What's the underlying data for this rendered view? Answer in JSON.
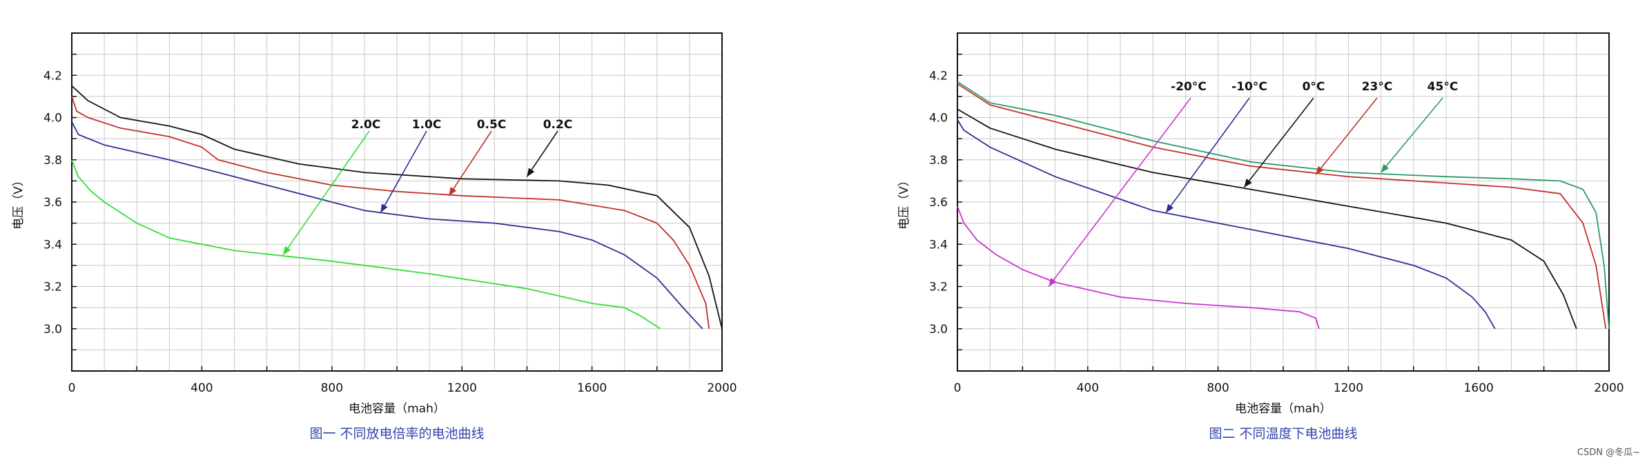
{
  "watermark": "CSDN @冬瓜~",
  "chart_data": [
    {
      "type": "line",
      "caption": "图一  不同放电倍率的电池曲线",
      "xlabel": "电池容量（mah）",
      "ylabel": "电压（V）",
      "xlim": [
        0,
        2000
      ],
      "ylim": [
        2.8,
        4.4
      ],
      "xticks": [
        "0",
        "400",
        "800",
        "1200",
        "1600",
        "2000"
      ],
      "yticks": [
        "3.0",
        "3.2",
        "3.4",
        "3.6",
        "3.8",
        "4.0",
        "4.2"
      ],
      "grid": true,
      "series": [
        {
          "name": "0.2C",
          "color": "#111111",
          "x": [
            0,
            50,
            150,
            300,
            400,
            500,
            700,
            900,
            1200,
            1500,
            1650,
            1800,
            1900,
            1960,
            2000
          ],
          "y": [
            4.15,
            4.08,
            4.0,
            3.96,
            3.92,
            3.85,
            3.78,
            3.74,
            3.71,
            3.7,
            3.68,
            3.63,
            3.48,
            3.25,
            3.0
          ]
        },
        {
          "name": "0.5C",
          "color": "#c0302a",
          "x": [
            0,
            15,
            50,
            150,
            300,
            400,
            450,
            600,
            800,
            1000,
            1200,
            1500,
            1700,
            1800,
            1850,
            1900,
            1950,
            1960
          ],
          "y": [
            4.1,
            4.03,
            4.0,
            3.95,
            3.91,
            3.86,
            3.8,
            3.74,
            3.68,
            3.65,
            3.63,
            3.61,
            3.56,
            3.5,
            3.42,
            3.3,
            3.12,
            3.0
          ]
        },
        {
          "name": "1.0C",
          "color": "#2a2f8f",
          "x": [
            0,
            20,
            100,
            300,
            500,
            700,
            900,
            1100,
            1300,
            1500,
            1600,
            1700,
            1800,
            1880,
            1940
          ],
          "y": [
            3.98,
            3.92,
            3.87,
            3.8,
            3.72,
            3.64,
            3.56,
            3.52,
            3.5,
            3.46,
            3.42,
            3.35,
            3.24,
            3.1,
            3.0
          ]
        },
        {
          "name": "2.0C",
          "color": "#33dd33",
          "x": [
            0,
            20,
            60,
            100,
            200,
            300,
            500,
            800,
            1100,
            1400,
            1600,
            1700,
            1750,
            1810
          ],
          "y": [
            3.8,
            3.72,
            3.65,
            3.6,
            3.5,
            3.43,
            3.37,
            3.32,
            3.26,
            3.19,
            3.12,
            3.1,
            3.06,
            3.0
          ]
        }
      ],
      "annotations": [
        {
          "text": "2.0C",
          "point": [
            650,
            3.35
          ]
        },
        {
          "text": "1.0C",
          "point": [
            950,
            3.55
          ]
        },
        {
          "text": "0.5C",
          "point": [
            1160,
            3.63
          ]
        },
        {
          "text": "0.2C",
          "point": [
            1400,
            3.72
          ]
        }
      ]
    },
    {
      "type": "line",
      "caption": "图二  不同温度下电池曲线",
      "xlabel": "电池容量（mah）",
      "ylabel": "电压（V）",
      "xlim": [
        0,
        2000
      ],
      "ylim": [
        2.8,
        4.4
      ],
      "xticks": [
        "0",
        "400",
        "800",
        "1200",
        "1600",
        "2000"
      ],
      "yticks": [
        "3.0",
        "3.2",
        "3.4",
        "3.6",
        "3.8",
        "4.0",
        "4.2"
      ],
      "grid": true,
      "series": [
        {
          "name": "-20°C",
          "color": "#cc33cc",
          "x": [
            0,
            20,
            60,
            120,
            200,
            300,
            500,
            700,
            900,
            1050,
            1100,
            1110
          ],
          "y": [
            3.58,
            3.5,
            3.42,
            3.35,
            3.28,
            3.22,
            3.15,
            3.12,
            3.1,
            3.08,
            3.05,
            3.0
          ]
        },
        {
          "name": "-10°C",
          "color": "#2a2f8f",
          "x": [
            0,
            20,
            100,
            300,
            600,
            900,
            1200,
            1400,
            1500,
            1580,
            1620,
            1650
          ],
          "y": [
            3.99,
            3.94,
            3.86,
            3.72,
            3.56,
            3.47,
            3.38,
            3.3,
            3.24,
            3.15,
            3.08,
            3.0
          ]
        },
        {
          "name": "0°C",
          "color": "#111111",
          "x": [
            0,
            100,
            300,
            600,
            900,
            1200,
            1500,
            1700,
            1800,
            1860,
            1900
          ],
          "y": [
            4.04,
            3.95,
            3.85,
            3.74,
            3.66,
            3.58,
            3.5,
            3.42,
            3.32,
            3.16,
            3.0
          ]
        },
        {
          "name": "23°C",
          "color": "#c0302a",
          "x": [
            0,
            100,
            300,
            600,
            900,
            1200,
            1500,
            1700,
            1850,
            1920,
            1960,
            1990
          ],
          "y": [
            4.16,
            4.06,
            3.98,
            3.86,
            3.77,
            3.72,
            3.69,
            3.67,
            3.64,
            3.5,
            3.3,
            3.0
          ]
        },
        {
          "name": "45°C",
          "color": "#2a9a66",
          "x": [
            0,
            100,
            300,
            600,
            900,
            1200,
            1500,
            1700,
            1850,
            1920,
            1960,
            1985,
            2000
          ],
          "y": [
            4.17,
            4.07,
            4.01,
            3.89,
            3.79,
            3.74,
            3.72,
            3.71,
            3.7,
            3.66,
            3.55,
            3.3,
            3.0
          ]
        }
      ],
      "annotations": [
        {
          "text": "-20°C",
          "point": [
            280,
            3.2
          ]
        },
        {
          "text": "-10°C",
          "point": [
            640,
            3.55
          ]
        },
        {
          "text": "0°C",
          "point": [
            880,
            3.67
          ]
        },
        {
          "text": "23°C",
          "point": [
            1100,
            3.73
          ]
        },
        {
          "text": "45°C",
          "point": [
            1300,
            3.74
          ]
        }
      ]
    }
  ]
}
